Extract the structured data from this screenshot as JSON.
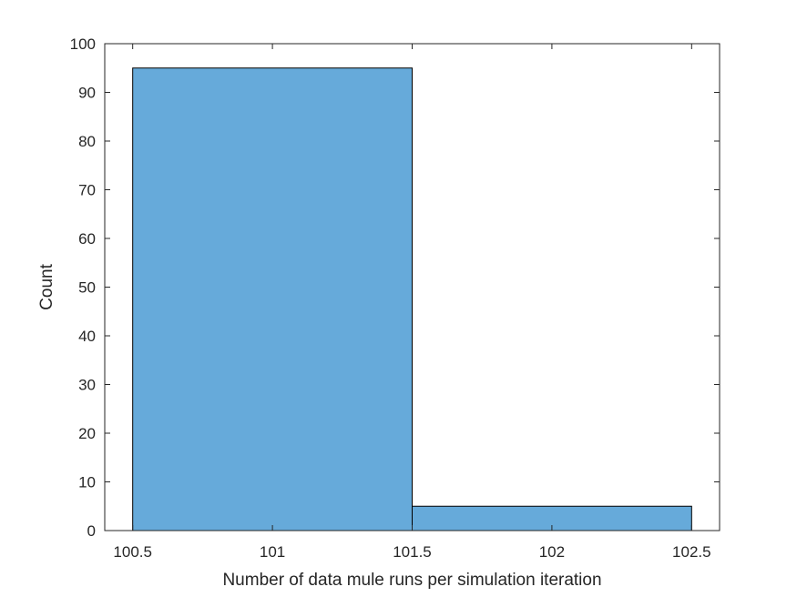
{
  "chart_data": {
    "type": "bar",
    "subtype": "histogram",
    "title": "",
    "xlabel": "Number of data mule runs per simulation iteration",
    "ylabel": "Count",
    "bins": [
      {
        "start": 100.5,
        "end": 101.5,
        "value": 95
      },
      {
        "start": 101.5,
        "end": 102.5,
        "value": 5
      }
    ],
    "xlim": [
      100.4,
      102.6
    ],
    "ylim": [
      0,
      100
    ],
    "xticks": [
      100.5,
      101,
      101.5,
      102,
      102.5
    ],
    "xtick_labels": [
      "100.5",
      "101",
      "101.5",
      "102",
      "102.5"
    ],
    "yticks": [
      0,
      10,
      20,
      30,
      40,
      50,
      60,
      70,
      80,
      90,
      100
    ],
    "ytick_labels": [
      "0",
      "10",
      "20",
      "30",
      "40",
      "50",
      "60",
      "70",
      "80",
      "90",
      "100"
    ],
    "grid": false,
    "bar_color": "#66AADA",
    "edge_color": "#000000",
    "axis_color": "#262626"
  }
}
